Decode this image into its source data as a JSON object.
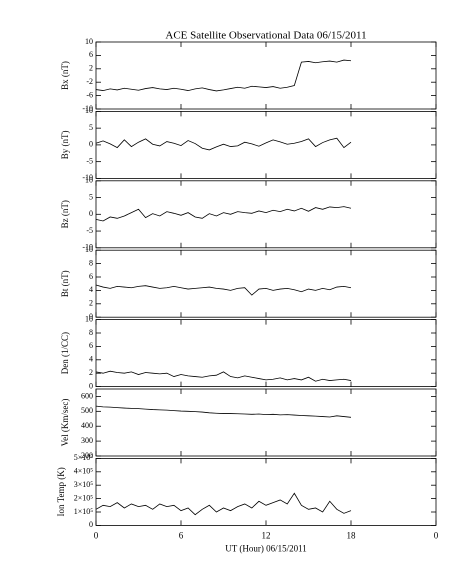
{
  "chart_data": [
    {
      "type": "line",
      "title": "ACE Satellite Observational Data  06/15/2011",
      "ylabel": "Bx (nT)",
      "color": "#000000",
      "xlim": [
        0,
        24
      ],
      "ylim": [
        -10,
        10
      ],
      "yticks": [
        -10,
        -6,
        -2,
        2,
        6,
        10
      ],
      "x": [
        0,
        0.5,
        1,
        1.5,
        2,
        2.5,
        3,
        3.5,
        4,
        4.5,
        5,
        5.5,
        6,
        6.5,
        7,
        7.5,
        8,
        8.5,
        9,
        9.5,
        10,
        10.5,
        11,
        11.5,
        12,
        12.5,
        13,
        13.5,
        14,
        14.5,
        15,
        15.5,
        16,
        16.5,
        17,
        17.5,
        18
      ],
      "values": [
        -4.2,
        -4.5,
        -4.0,
        -4.3,
        -3.8,
        -4.1,
        -4.4,
        -3.9,
        -3.6,
        -4.0,
        -4.2,
        -3.8,
        -4.1,
        -4.5,
        -4.0,
        -3.7,
        -4.2,
        -4.6,
        -4.3,
        -3.9,
        -3.5,
        -3.8,
        -3.2,
        -3.4,
        -3.6,
        -3.3,
        -3.8,
        -3.5,
        -3.0,
        4.0,
        4.2,
        3.8,
        4.1,
        4.3,
        4.0,
        4.6,
        4.4
      ]
    },
    {
      "type": "line",
      "ylabel": "By (nT)",
      "color": "#000000",
      "xlim": [
        0,
        24
      ],
      "ylim": [
        -10,
        10
      ],
      "yticks": [
        -10,
        -5,
        0,
        5,
        10
      ],
      "x": [
        0,
        0.5,
        1,
        1.5,
        2,
        2.5,
        3,
        3.5,
        4,
        4.5,
        5,
        5.5,
        6,
        6.5,
        7,
        7.5,
        8,
        8.5,
        9,
        9.5,
        10,
        10.5,
        11,
        11.5,
        12,
        12.5,
        13,
        13.5,
        14,
        14.5,
        15,
        15.5,
        16,
        16.5,
        17,
        17.5,
        18
      ],
      "values": [
        0.5,
        1.2,
        0.3,
        -0.8,
        1.5,
        -0.5,
        0.8,
        1.8,
        0.2,
        -0.3,
        1.0,
        0.5,
        -0.2,
        1.3,
        0.4,
        -1.0,
        -1.5,
        -0.6,
        0.2,
        -0.5,
        -0.3,
        0.8,
        0.3,
        -0.4,
        0.6,
        1.5,
        0.9,
        0.2,
        0.5,
        1.0,
        1.8,
        -0.5,
        0.7,
        1.5,
        2.0,
        -0.8,
        0.8
      ]
    },
    {
      "type": "line",
      "ylabel": "Bz (nT)",
      "color": "#000000",
      "xlim": [
        0,
        24
      ],
      "ylim": [
        -10,
        10
      ],
      "yticks": [
        -10,
        -5,
        0,
        5,
        10
      ],
      "x": [
        0,
        0.5,
        1,
        1.5,
        2,
        2.5,
        3,
        3.5,
        4,
        4.5,
        5,
        5.5,
        6,
        6.5,
        7,
        7.5,
        8,
        8.5,
        9,
        9.5,
        10,
        10.5,
        11,
        11.5,
        12,
        12.5,
        13,
        13.5,
        14,
        14.5,
        15,
        15.5,
        16,
        16.5,
        17,
        17.5,
        18
      ],
      "values": [
        -1.5,
        -2.0,
        -0.8,
        -1.2,
        -0.5,
        0.5,
        1.5,
        -1.0,
        0.2,
        -0.5,
        0.8,
        0.3,
        -0.3,
        0.5,
        -0.8,
        -1.2,
        0.2,
        -0.5,
        0.5,
        0.0,
        0.8,
        0.5,
        0.3,
        1.0,
        0.5,
        1.2,
        0.8,
        1.5,
        1.0,
        1.8,
        0.9,
        2.0,
        1.5,
        2.2,
        2.0,
        2.3,
        1.8
      ]
    },
    {
      "type": "line",
      "ylabel": "Bt (nT)",
      "color": "#000000",
      "xlim": [
        0,
        24
      ],
      "ylim": [
        0,
        10
      ],
      "yticks": [
        0,
        2,
        4,
        6,
        8,
        10
      ],
      "x": [
        0,
        0.5,
        1,
        1.5,
        2,
        2.5,
        3,
        3.5,
        4,
        4.5,
        5,
        5.5,
        6,
        6.5,
        7,
        7.5,
        8,
        8.5,
        9,
        9.5,
        10,
        10.5,
        11,
        11.5,
        12,
        12.5,
        13,
        13.5,
        14,
        14.5,
        15,
        15.5,
        16,
        16.5,
        17,
        17.5,
        18
      ],
      "values": [
        4.8,
        4.5,
        4.3,
        4.6,
        4.5,
        4.4,
        4.6,
        4.7,
        4.5,
        4.3,
        4.4,
        4.6,
        4.4,
        4.2,
        4.3,
        4.4,
        4.5,
        4.3,
        4.2,
        4.0,
        4.3,
        4.4,
        3.3,
        4.2,
        4.3,
        4.0,
        4.2,
        4.3,
        4.1,
        3.8,
        4.2,
        4.0,
        4.3,
        4.1,
        4.5,
        4.6,
        4.4
      ]
    },
    {
      "type": "line",
      "ylabel": "Den (1/CC)",
      "color": "#000000",
      "xlim": [
        0,
        24
      ],
      "ylim": [
        0,
        10
      ],
      "yticks": [
        0,
        2,
        4,
        6,
        8,
        10
      ],
      "x": [
        0,
        0.5,
        1,
        1.5,
        2,
        2.5,
        3,
        3.5,
        4,
        4.5,
        5,
        5.5,
        6,
        6.5,
        7,
        7.5,
        8,
        8.5,
        9,
        9.5,
        10,
        10.5,
        11,
        11.5,
        12,
        12.5,
        13,
        13.5,
        14,
        14.5,
        15,
        15.5,
        16,
        16.5,
        17,
        17.5,
        18
      ],
      "values": [
        2.2,
        2.0,
        2.3,
        2.1,
        2.0,
        2.2,
        1.8,
        2.1,
        2.0,
        1.9,
        2.0,
        1.5,
        1.8,
        1.6,
        1.5,
        1.4,
        1.6,
        1.7,
        2.2,
        1.5,
        1.3,
        1.6,
        1.4,
        1.2,
        1.0,
        1.1,
        1.3,
        1.0,
        1.2,
        1.0,
        1.4,
        0.8,
        1.1,
        0.9,
        1.0,
        1.1,
        0.9
      ]
    },
    {
      "type": "line",
      "ylabel": "Vel (Km/sec)",
      "color": "#000000",
      "xlim": [
        0,
        24
      ],
      "ylim": [
        200,
        650
      ],
      "yticks": [
        200,
        300,
        400,
        500,
        600
      ],
      "x": [
        0,
        0.5,
        1,
        1.5,
        2,
        2.5,
        3,
        3.5,
        4,
        4.5,
        5,
        5.5,
        6,
        6.5,
        7,
        7.5,
        8,
        8.5,
        9,
        9.5,
        10,
        10.5,
        11,
        11.5,
        12,
        12.5,
        13,
        13.5,
        14,
        14.5,
        15,
        15.5,
        16,
        16.5,
        17,
        17.5,
        18
      ],
      "values": [
        535,
        530,
        528,
        525,
        522,
        520,
        518,
        515,
        512,
        510,
        508,
        505,
        502,
        500,
        498,
        495,
        490,
        487,
        485,
        485,
        484,
        482,
        480,
        482,
        478,
        480,
        476,
        478,
        475,
        472,
        470,
        468,
        465,
        462,
        470,
        465,
        460
      ]
    },
    {
      "type": "line",
      "ylabel": "Ion Temp (K)",
      "color": "#000000",
      "xlabel": "UT (Hour)  06/15/2011",
      "xlim": [
        0,
        24
      ],
      "xticks": [
        0,
        6,
        12,
        18,
        {
          "value": 24,
          "label": "0"
        }
      ],
      "ylim": [
        0,
        500000
      ],
      "yticks": [
        0,
        {
          "value": 100000,
          "label": "1×10⁵"
        },
        {
          "value": 200000,
          "label": "2×10⁵"
        },
        {
          "value": 300000,
          "label": "3×10⁵"
        },
        {
          "value": 400000,
          "label": "4×10⁵"
        },
        {
          "value": 500000,
          "label": "5×10⁵"
        }
      ],
      "x": [
        0,
        0.5,
        1,
        1.5,
        2,
        2.5,
        3,
        3.5,
        4,
        4.5,
        5,
        5.5,
        6,
        6.5,
        7,
        7.5,
        8,
        8.5,
        9,
        9.5,
        10,
        10.5,
        11,
        11.5,
        12,
        12.5,
        13,
        13.5,
        14,
        14.5,
        15,
        15.5,
        16,
        16.5,
        17,
        17.5,
        18
      ],
      "values": [
        120000,
        150000,
        140000,
        170000,
        130000,
        160000,
        140000,
        150000,
        120000,
        160000,
        140000,
        150000,
        110000,
        130000,
        80000,
        120000,
        150000,
        100000,
        130000,
        110000,
        140000,
        160000,
        130000,
        180000,
        150000,
        170000,
        190000,
        160000,
        240000,
        150000,
        120000,
        130000,
        100000,
        180000,
        120000,
        90000,
        110000
      ]
    }
  ]
}
